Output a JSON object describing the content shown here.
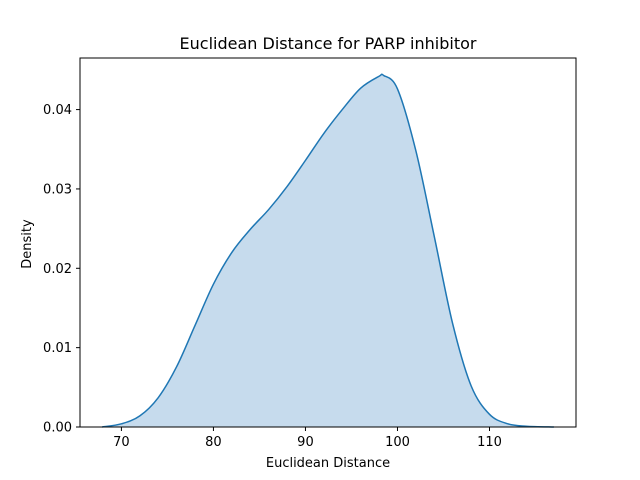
{
  "chart_data": {
    "type": "area",
    "title": "Euclidean Distance for PARP inhibitor",
    "xlabel": "Euclidean Distance",
    "ylabel": "Density",
    "xlim": [
      65.5,
      119.4
    ],
    "ylim": [
      0.0,
      0.0465
    ],
    "xticks": [
      70,
      80,
      90,
      100,
      110
    ],
    "xtick_labels": [
      "70",
      "80",
      "90",
      "100",
      "110"
    ],
    "yticks": [
      0.0,
      0.01,
      0.02,
      0.03,
      0.04
    ],
    "ytick_labels": [
      "0.00",
      "0.01",
      "0.02",
      "0.03",
      "0.04"
    ],
    "grid": false,
    "line_color": "#1f77b4",
    "fill_color": "#c6dbed",
    "series": [
      {
        "x": [
          67.9,
          70,
          72,
          74,
          76,
          78,
          80,
          82,
          84,
          86,
          88,
          90,
          92,
          94,
          96,
          98,
          98.5,
          100,
          102,
          104,
          106,
          108,
          110,
          112,
          114,
          117
        ],
        "y": [
          0.0,
          0.0004,
          0.0014,
          0.0037,
          0.0076,
          0.0128,
          0.018,
          0.022,
          0.0249,
          0.0274,
          0.0303,
          0.0336,
          0.037,
          0.04,
          0.0427,
          0.0442,
          0.0443,
          0.0426,
          0.0348,
          0.024,
          0.013,
          0.0052,
          0.0016,
          0.0004,
          0.0001,
          0.0
        ]
      }
    ]
  }
}
